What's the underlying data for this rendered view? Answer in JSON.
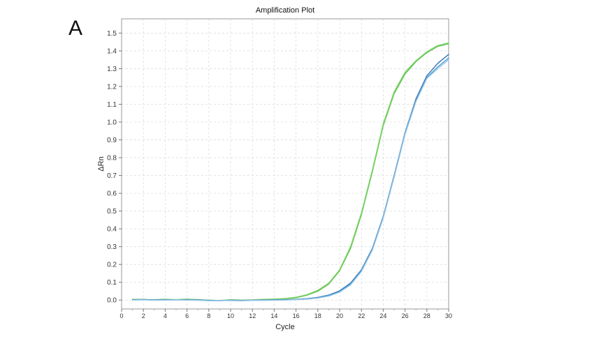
{
  "panel_label": "A",
  "chart_data": {
    "type": "line",
    "title": "Amplification Plot",
    "xlabel": "Cycle",
    "ylabel": "ΔRn",
    "xlim": [
      0,
      30
    ],
    "ylim": [
      -0.05,
      1.58
    ],
    "xticks": [
      0,
      2,
      4,
      6,
      8,
      10,
      12,
      14,
      16,
      18,
      20,
      22,
      24,
      26,
      28,
      30
    ],
    "yticks": [
      0.0,
      0.1,
      0.2,
      0.3,
      0.4,
      0.5,
      0.6,
      0.7,
      0.8,
      0.9,
      1.0,
      1.1,
      1.2,
      1.3,
      1.4,
      1.5
    ],
    "ytick_labels": [
      "0.0",
      "0.1",
      "0.2",
      "0.3",
      "0.4",
      "0.5",
      "0.6",
      "0.7",
      "0.8",
      "0.9",
      "1.0",
      "1.1",
      "1.2",
      "1.3",
      "1.4",
      "1.5"
    ],
    "grid": true,
    "x": [
      1,
      2,
      3,
      4,
      5,
      6,
      7,
      8,
      9,
      10,
      11,
      12,
      13,
      14,
      15,
      16,
      17,
      18,
      19,
      20,
      21,
      22,
      23,
      24,
      25,
      26,
      27,
      28,
      29,
      30
    ],
    "series": [
      {
        "color": "#5cc04a",
        "values": [
          0.003,
          0.004,
          0.0,
          0.004,
          0.0,
          0.003,
          0.003,
          -0.002,
          -0.002,
          0.0,
          -0.002,
          0.0,
          0.002,
          0.004,
          0.007,
          0.013,
          0.027,
          0.05,
          0.09,
          0.165,
          0.29,
          0.48,
          0.72,
          0.98,
          1.16,
          1.27,
          1.34,
          1.39,
          1.425,
          1.44
        ]
      },
      {
        "color": "#7dd36a",
        "values": [
          0.005,
          0.002,
          0.002,
          0.005,
          0.002,
          0.006,
          0.001,
          0.0,
          -0.003,
          0.002,
          0.0,
          0.001,
          0.004,
          0.006,
          0.009,
          0.016,
          0.03,
          0.055,
          0.095,
          0.17,
          0.3,
          0.49,
          0.73,
          0.99,
          1.17,
          1.28,
          1.345,
          1.395,
          1.43,
          1.445
        ]
      },
      {
        "color": "#3a6fb0",
        "values": [
          0.002,
          0.003,
          0.001,
          0.002,
          0.0,
          0.002,
          0.001,
          -0.002,
          -0.003,
          -0.001,
          -0.002,
          -0.001,
          0.0,
          0.001,
          0.002,
          0.004,
          0.008,
          0.015,
          0.028,
          0.052,
          0.095,
          0.17,
          0.29,
          0.47,
          0.7,
          0.94,
          1.13,
          1.26,
          1.33,
          1.38
        ]
      },
      {
        "color": "#3fa0d8",
        "values": [
          0.001,
          0.002,
          0.0,
          0.001,
          0.001,
          0.001,
          0.0,
          -0.003,
          -0.002,
          -0.002,
          -0.003,
          -0.001,
          -0.001,
          0.0,
          0.001,
          0.003,
          0.006,
          0.013,
          0.025,
          0.048,
          0.09,
          0.165,
          0.285,
          0.465,
          0.695,
          0.935,
          1.12,
          1.25,
          1.31,
          1.36
        ]
      },
      {
        "color": "#9ac6e6",
        "values": [
          0.0,
          0.001,
          -0.001,
          0.0,
          0.0,
          0.0,
          -0.001,
          -0.004,
          -0.003,
          -0.003,
          -0.004,
          -0.002,
          -0.002,
          -0.001,
          0.0,
          0.002,
          0.005,
          0.011,
          0.022,
          0.044,
          0.085,
          0.16,
          0.28,
          0.46,
          0.69,
          0.93,
          1.115,
          1.245,
          1.3,
          1.35
        ]
      }
    ]
  }
}
